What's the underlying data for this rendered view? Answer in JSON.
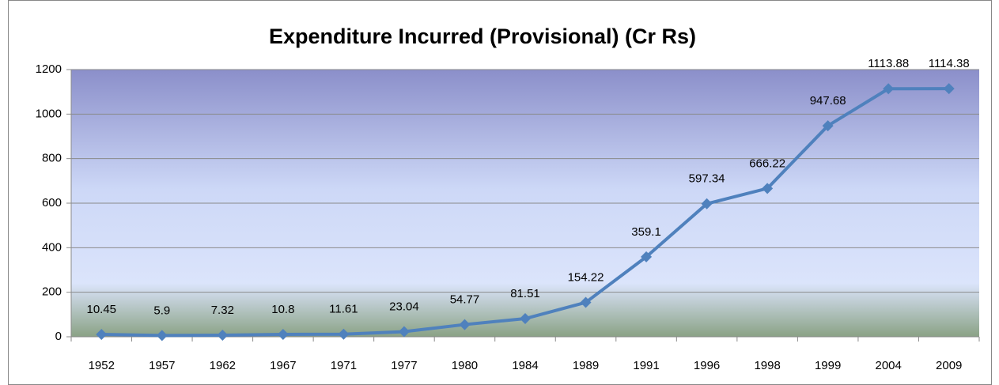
{
  "chart_data": {
    "type": "line",
    "title": "Expenditure Incurred (Provisional) (Cr Rs)",
    "categories": [
      "1952",
      "1957",
      "1962",
      "1967",
      "1971",
      "1977",
      "1980",
      "1984",
      "1989",
      "1991",
      "1996",
      "1998",
      "1999",
      "2004",
      "2009"
    ],
    "values": [
      10.45,
      5.9,
      7.32,
      10.8,
      11.61,
      23.04,
      54.77,
      81.51,
      154.22,
      359.1,
      597.34,
      666.22,
      947.68,
      1113.88,
      1114.38
    ],
    "color": "#4f81bd",
    "ylim": [
      0,
      1200
    ],
    "yticks": [
      0,
      200,
      400,
      600,
      800,
      1000,
      1200
    ],
    "grid": true
  }
}
